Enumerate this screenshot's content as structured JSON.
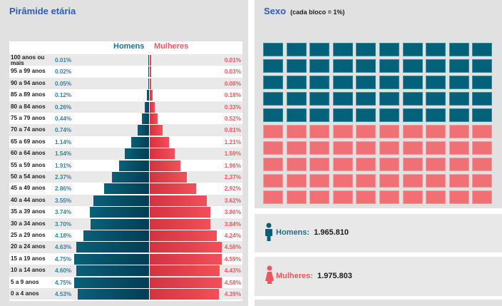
{
  "left": {
    "title": "Pirâmide etária",
    "legend": {
      "men": "Homens",
      "women": "Mulheres"
    }
  },
  "right": {
    "title": "Sexo",
    "subtitle": "(cada bloco = 1%)",
    "men": {
      "icon": "male-person-icon",
      "label": "Homens:",
      "value": "1.965.810"
    },
    "women": {
      "icon": "female-person-icon",
      "label": "Mulheres:",
      "value": "1.975.803"
    }
  },
  "colors": {
    "men": "#0a5f77",
    "women": "#f24f5a",
    "title": "#2f5bb7"
  },
  "chart_data": [
    {
      "type": "bar",
      "orientation": "horizontal-diverging",
      "title": "Pirâmide etária",
      "series_names": [
        "Homens",
        "Mulheres"
      ],
      "unit": "%",
      "categories": [
        "100 anos ou mais",
        "95 a 99 anos",
        "90 a 94 anos",
        "85 a 89 anos",
        "80 a 84 anos",
        "75 a 79 anos",
        "70 a 74 anos",
        "65 a 69 anos",
        "60 a 64 anos",
        "55 a 59 anos",
        "50 a 54 anos",
        "45 a 49 anos",
        "40 a 44 anos",
        "35 a 39 anos",
        "30 a 34 anos",
        "25 a 29 anos",
        "20 a 24 anos",
        "15 a 19 anos",
        "10 a 14 anos",
        "5 a 9 anos",
        "0 a 4 anos"
      ],
      "series": [
        {
          "name": "Homens",
          "values": [
            0.01,
            0.02,
            0.05,
            0.12,
            0.26,
            0.44,
            0.74,
            1.14,
            1.54,
            1.91,
            2.37,
            2.86,
            3.55,
            3.74,
            3.7,
            4.18,
            4.63,
            4.75,
            4.6,
            4.75,
            4.53
          ],
          "labels": [
            "0.01%",
            "0.02%",
            "0.05%",
            "0.12%",
            "0.26%",
            "0.44%",
            "0.74%",
            "1.14%",
            "1.54%",
            "1.91%",
            "2.37%",
            "2.86%",
            "3.55%",
            "3.74%",
            "3.70%",
            "4.18%",
            "4.63%",
            "4.75%",
            "4.60%",
            "4.75%",
            "4.53%"
          ]
        },
        {
          "name": "Mulheres",
          "values": [
            0.01,
            0.03,
            0.08,
            0.18,
            0.33,
            0.52,
            0.81,
            1.21,
            1.59,
            1.96,
            2.37,
            2.92,
            3.62,
            3.86,
            3.84,
            4.24,
            4.58,
            4.59,
            4.43,
            4.58,
            4.39
          ],
          "labels": [
            "0.01%",
            "0.03%",
            "0.08%",
            "0.18%",
            "0.33%",
            "0.52%",
            "0.81%",
            "1.21%",
            "1.59%",
            "1.96%",
            "2.37%",
            "2.92%",
            "3.62%",
            "3.86%",
            "3.84%",
            "4.24%",
            "4.58%",
            "4.59%",
            "4.43%",
            "4.58%",
            "4.39%"
          ]
        }
      ],
      "xlim": [
        0,
        4.75
      ]
    },
    {
      "type": "waffle",
      "title": "Sexo (cada bloco = 1%)",
      "grid": [
        10,
        10
      ],
      "categories": [
        "Homens",
        "Mulheres"
      ],
      "values": [
        50,
        50
      ]
    }
  ]
}
